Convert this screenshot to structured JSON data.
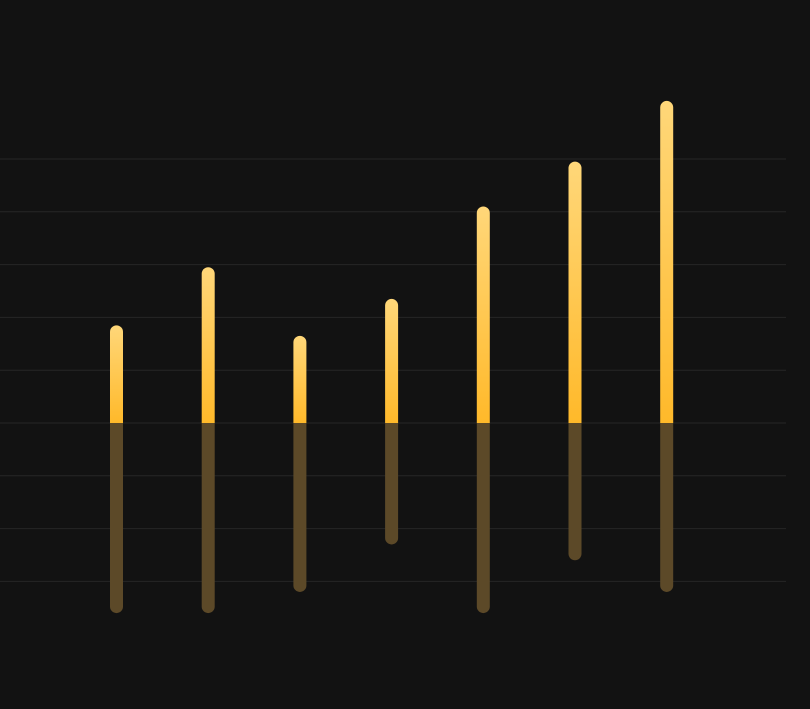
{
  "chart_data": {
    "type": "bar",
    "subtype": "diverging",
    "categories": [
      "",
      "",
      "",
      "",
      "",
      "",
      ""
    ],
    "series": [
      {
        "values": [
          1.85,
          2.95,
          1.65,
          2.35,
          4.1,
          4.95,
          6.1
        ]
      },
      {
        "values": [
          -3.6,
          -3.6,
          -3.2,
          -2.3,
          -3.6,
          -2.6,
          -3.2
        ]
      }
    ],
    "ylim": [
      -3.3,
      5.7
    ],
    "grid": true,
    "legend": "none"
  },
  "colors": {
    "background": "#121212",
    "gridline": "#262626",
    "positive_top": "#ffd779",
    "positive_bottom": "#ffb92a",
    "negative": "#5c4928"
  }
}
